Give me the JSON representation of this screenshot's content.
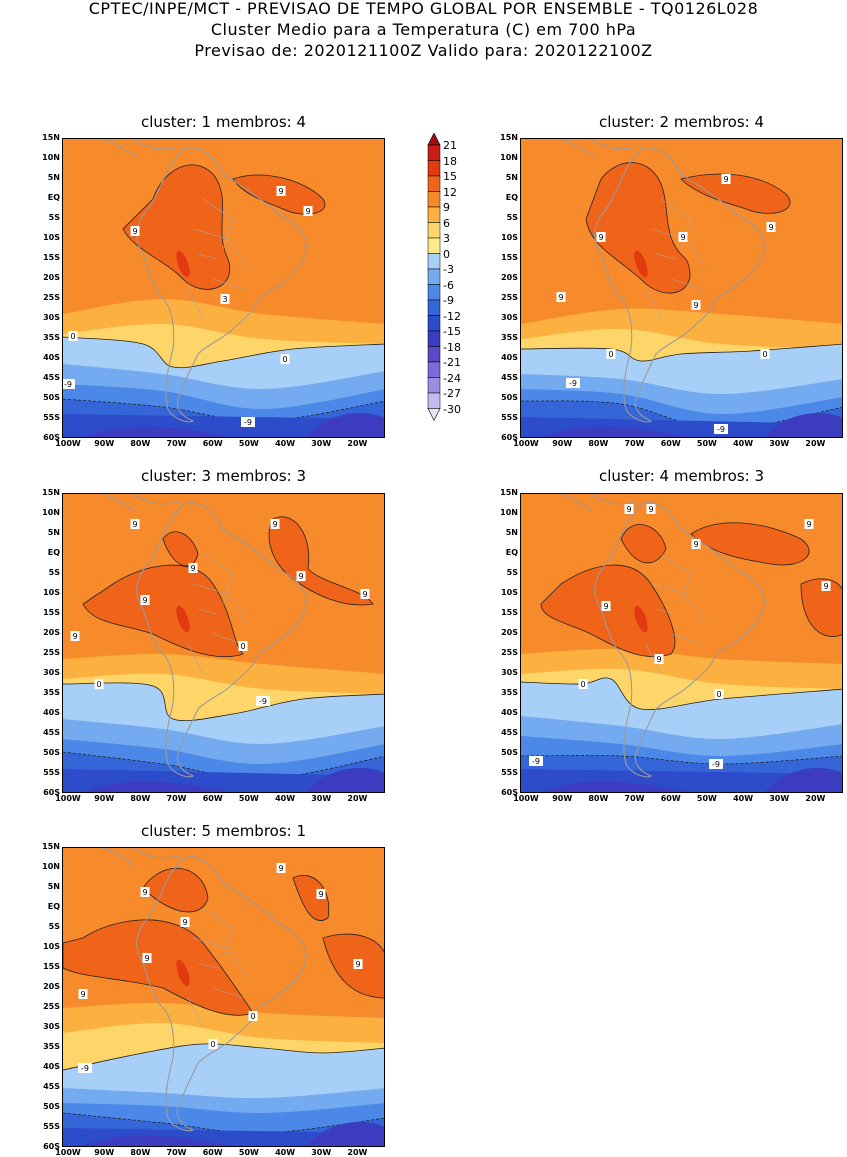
{
  "header": {
    "line1": "CPTEC/INPE/MCT - PREVISAO DE TEMPO GLOBAL POR ENSEMBLE - TQ0126L028",
    "line2": "Cluster Medio para a Temperatura (C) em 700 hPa",
    "line3": "Previsao de: 2020121100Z   Valido para: 2020122100Z"
  },
  "colorbar": {
    "levels": [
      "21",
      "18",
      "15",
      "12",
      "9",
      "6",
      "3",
      "0",
      "-3",
      "-6",
      "-9",
      "-12",
      "-15",
      "-18",
      "-21",
      "-24",
      "-27",
      "-30"
    ],
    "colors": [
      "#a01010",
      "#c81e14",
      "#e23a10",
      "#f0641a",
      "#f78a2a",
      "#fbb040",
      "#fdd568",
      "#fbeb8c",
      "#a8cff8",
      "#74aaf0",
      "#4c88e8",
      "#3466d8",
      "#2c4ccc",
      "#3c3cc0",
      "#5a48c8",
      "#7c6ad8",
      "#9c8ce4",
      "#c4bcf0",
      "#e8e4f8"
    ]
  },
  "axes": {
    "lat_labels": [
      "15N",
      "10N",
      "5N",
      "EQ",
      "5S",
      "10S",
      "15S",
      "20S",
      "25S",
      "30S",
      "35S",
      "40S",
      "45S",
      "50S",
      "55S",
      "60S"
    ],
    "lon_labels": [
      "100W",
      "90W",
      "80W",
      "70W",
      "60W",
      "50W",
      "40W",
      "30W",
      "20W"
    ]
  },
  "panels": [
    {
      "title": "cluster: 1   membros: 4",
      "contour_labels": [
        "9",
        "9",
        "9",
        "3",
        "0",
        "0",
        "-9",
        "-9"
      ]
    },
    {
      "title": "cluster: 2   membros: 4",
      "contour_labels": [
        "9",
        "9",
        "9",
        "9",
        "9",
        "9",
        "0",
        "0",
        "-9",
        "-9"
      ]
    },
    {
      "title": "cluster: 3   membros: 3",
      "contour_labels": [
        "9",
        "9",
        "9",
        "9",
        "9",
        "9",
        "9",
        "0",
        "0",
        "-9"
      ]
    },
    {
      "title": "cluster: 4   membros: 3",
      "contour_labels": [
        "9",
        "9",
        "9",
        "9",
        "9",
        "9",
        "9",
        "0",
        "0",
        "-9",
        "-9"
      ]
    },
    {
      "title": "cluster: 5   membros: 1",
      "contour_labels": [
        "9",
        "9",
        "9",
        "9",
        "9",
        "9",
        "9",
        "0",
        "0",
        "-9"
      ]
    }
  ]
}
